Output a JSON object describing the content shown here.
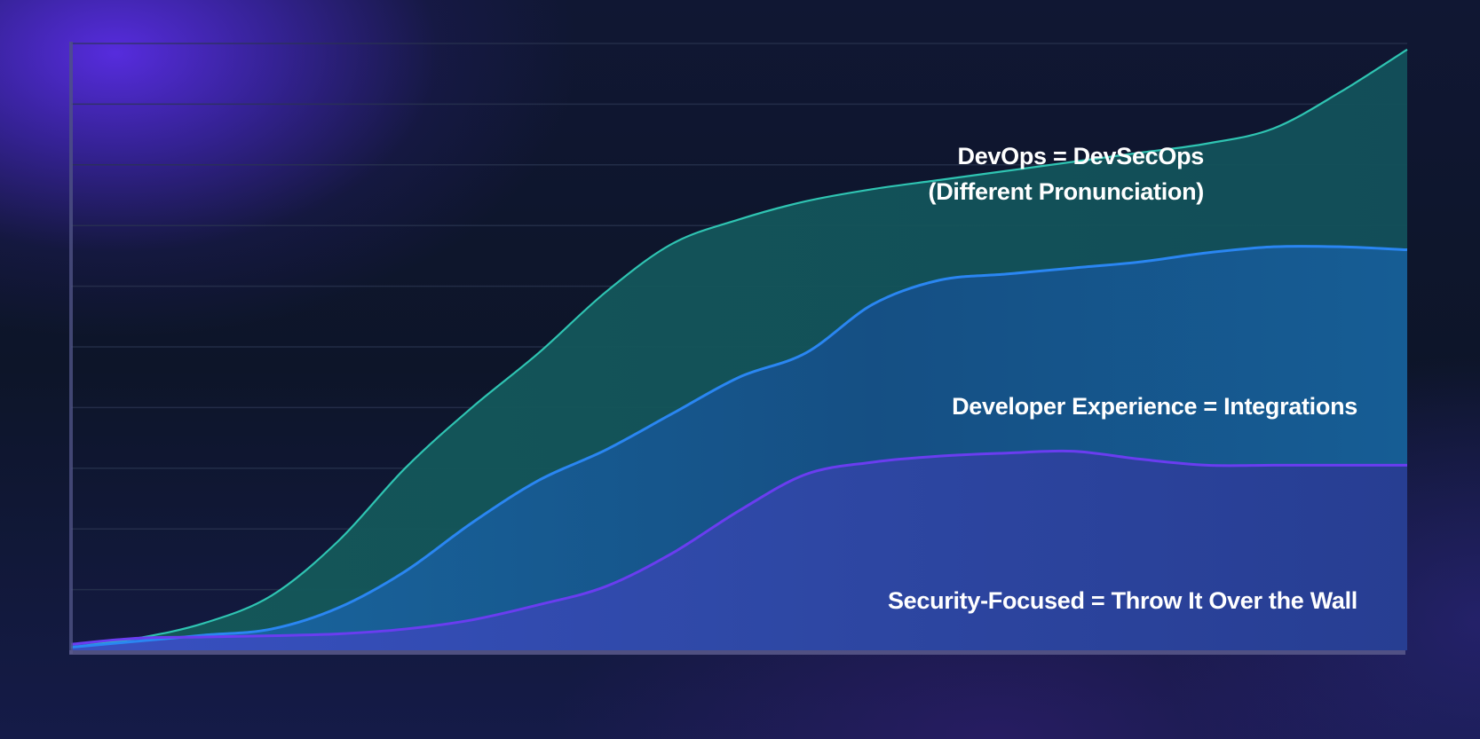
{
  "chart_data": {
    "type": "area",
    "title": "",
    "xlabel": "",
    "ylabel": "",
    "grid": true,
    "legend_position": "inline-annotations",
    "ylim": [
      0,
      10
    ],
    "xlim": [
      0,
      100
    ],
    "gridline_count": 10,
    "x": [
      0,
      5,
      10,
      15,
      20,
      25,
      30,
      35,
      40,
      45,
      50,
      55,
      60,
      65,
      70,
      75,
      80,
      85,
      90,
      95,
      100
    ],
    "series": [
      {
        "name": "DevOps = DevSecOps (Different Pronunciation)",
        "color": "#2fc4b2",
        "values": [
          0.05,
          0.2,
          0.45,
          0.9,
          1.8,
          3.0,
          4.0,
          4.9,
          5.9,
          6.7,
          7.1,
          7.4,
          7.6,
          7.75,
          7.9,
          8.05,
          8.2,
          8.35,
          8.6,
          9.2,
          9.9
        ]
      },
      {
        "name": "Developer Experience = Integrations",
        "color": "#2a86f2",
        "values": [
          0.05,
          0.15,
          0.25,
          0.35,
          0.7,
          1.3,
          2.1,
          2.8,
          3.3,
          3.9,
          4.5,
          4.9,
          5.7,
          6.1,
          6.2,
          6.3,
          6.4,
          6.55,
          6.65,
          6.65,
          6.6
        ]
      },
      {
        "name": "Security-Focused = Throw It Over the Wall",
        "color": "#6a3df0",
        "values": [
          0.1,
          0.2,
          0.22,
          0.24,
          0.27,
          0.35,
          0.5,
          0.75,
          1.05,
          1.6,
          2.3,
          2.9,
          3.1,
          3.2,
          3.25,
          3.28,
          3.15,
          3.05,
          3.05,
          3.05,
          3.05
        ]
      }
    ],
    "annotations": [
      "DevOps = DevSecOps",
      "(Different Pronunciation)",
      "Developer Experience = Integrations",
      "Security-Focused = Throw It Over the Wall"
    ]
  },
  "labels": {
    "devops_line1": "DevOps = DevSecOps",
    "devops_line2": "(Different Pronunciation)",
    "devex": "Developer Experience = Integrations",
    "security": "Security-Focused = Throw It Over the Wall"
  },
  "colors": {
    "background": "#0e1629",
    "glow": "#5a2de6",
    "devops_line": "#2fc4b2",
    "devops_fill": "#134e55",
    "devex_line": "#2a86f2",
    "devex_fill": "#165a8c",
    "security_line": "#6a3df0",
    "security_fill": "#2f43a6",
    "gridline": "#2a3550",
    "axis": "#4a4f7a"
  }
}
